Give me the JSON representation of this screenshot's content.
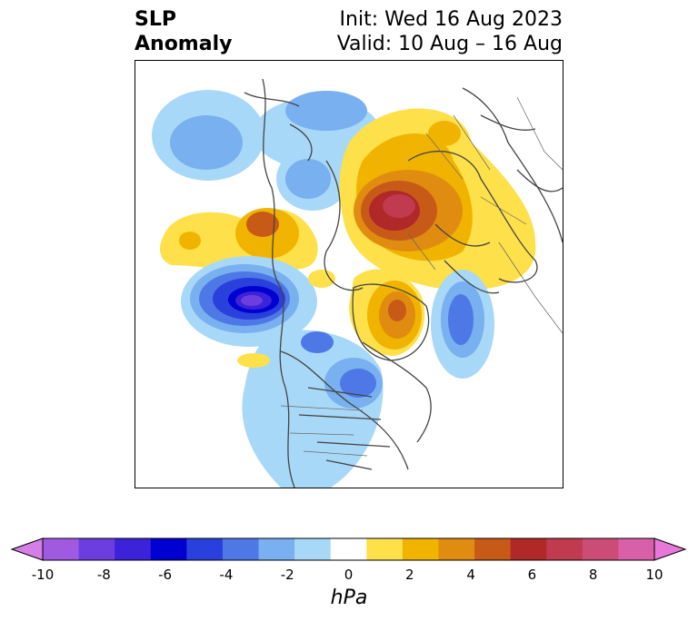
{
  "title": {
    "left_line1": "SLP",
    "left_line2": "Anomaly",
    "right_line1": "Init: Wed 16 Aug 2023",
    "right_line2": "Valid: 10 Aug – 16 Aug"
  },
  "colorbar": {
    "unit": "hPa",
    "ticks": [
      "-10",
      "-8",
      "-6",
      "-4",
      "-2",
      "0",
      "2",
      "4",
      "6",
      "8",
      "10"
    ],
    "range": [
      -10,
      10
    ],
    "colors": [
      "#d57ee8",
      "#a05ae0",
      "#6c3ee0",
      "#3c22d8",
      "#0000d0",
      "#2a40dc",
      "#4d78e6",
      "#78b0f0",
      "#a8d8f8",
      "#ffffff",
      "#fde04a",
      "#f0b400",
      "#e08c10",
      "#c85a18",
      "#b02828",
      "#c03a50",
      "#cc4c78",
      "#d860a8",
      "#e878d8"
    ]
  }
}
